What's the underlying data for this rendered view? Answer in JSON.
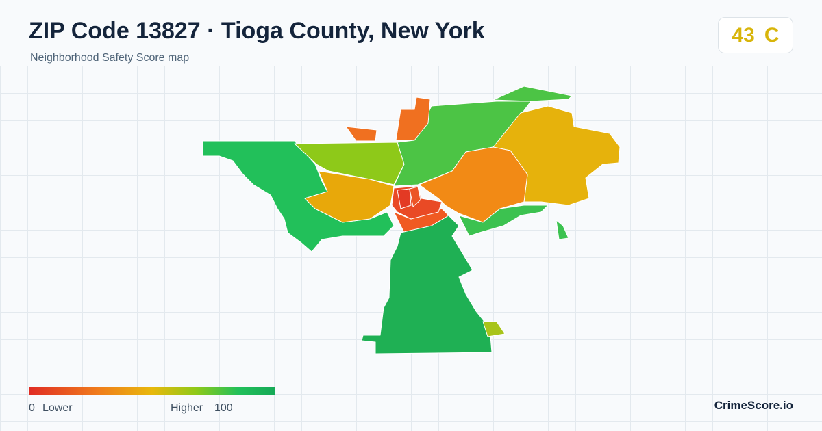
{
  "header": {
    "title": "ZIP Code 13827 · Tioga County, New York",
    "subtitle": "Neighborhood Safety Score map"
  },
  "badge": {
    "score": "43",
    "grade": "C"
  },
  "legend": {
    "min": "0",
    "low_label": "Lower",
    "high_label": "Higher",
    "max": "100"
  },
  "footer": {
    "brand": "CrimeScore.io"
  }
}
